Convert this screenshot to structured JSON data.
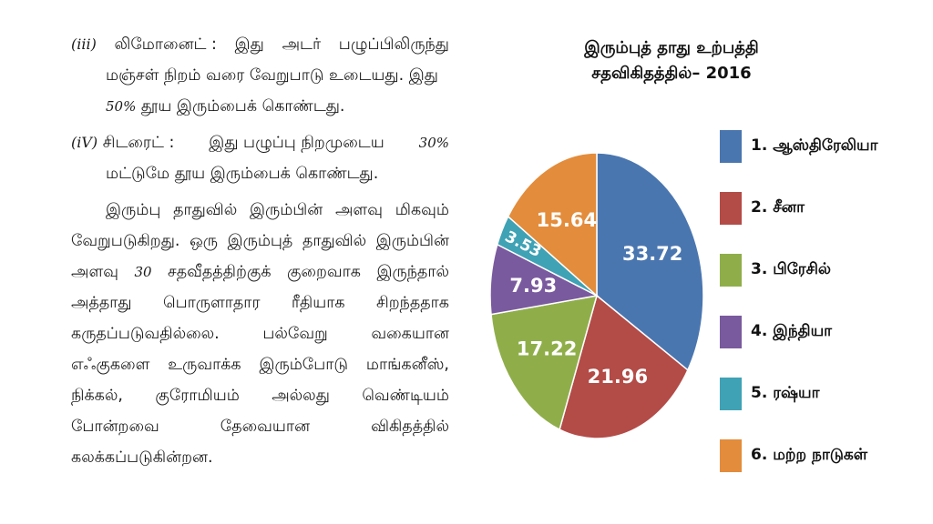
{
  "text": {
    "p1": {
      "roman": "(iii)",
      "l1": [
        "லிமோனைட் :",
        "இது",
        "அடர்",
        "பழுப்பிலிருந்து"
      ],
      "l2": "மஞ்சள் நிறம் வரை வேறுபாடு உடையது. இது",
      "l3_pct": "50%",
      "l3_rest": "தூய இரும்பைக் கொண்டது."
    },
    "p2": {
      "roman": "(iV)",
      "l1": [
        "சிடரைட் :",
        "இது பழுப்பு நிறமுடைய",
        "30%"
      ],
      "l2": "மட்டுமே தூய இரும்பைக் கொண்டது."
    },
    "p3": {
      "l1": [
        "இரும்பு",
        "தாதுவில்",
        "இரும்பின்",
        "அளவு",
        "மிகவும்"
      ],
      "l2": [
        "வேறுபடுகிறது.",
        "ஒரு",
        "இரும்புத்",
        "தாதுவில்",
        "இரும்பின்"
      ],
      "l3": [
        "அளவு",
        "30",
        "சதவீதத்திற்குக்",
        "குறைவாக",
        "இருந்தால்"
      ],
      "l4": [
        "அத்தாது",
        "பொருளாதார",
        "ரீதியாக",
        "சிறந்ததாக"
      ],
      "l5": [
        "கருதப்படுவதில்லை.",
        "பல்வேறு",
        "வகையான"
      ],
      "l6": [
        "எஃகுகளை",
        "உருவாக்க",
        "இரும்போடு",
        "மாங்கனீஸ்,"
      ],
      "l7": [
        "நிக்கல்,",
        "குரோமியம்",
        "அல்லது",
        "வெண்டியம்"
      ],
      "l8": [
        "போன்றவை",
        "தேவையான",
        "விகிதத்தில்"
      ],
      "l9": "கலக்கப்படுகின்றன."
    }
  },
  "chart_data": {
    "type": "pie",
    "title": "இரும்புத் தாது உற்பத்தி",
    "subtitle": "சதவிகிதத்தில்– 2016",
    "categories": [
      "1. ஆஸ்திரேலியா",
      "2. சீனா",
      "3. பிரேசில்",
      "4. இந்தியா",
      "5. ரஷ்யா",
      "6. மற்ற நாடுகள்"
    ],
    "values": [
      33.72,
      21.96,
      17.22,
      7.93,
      3.53,
      15.64
    ],
    "labels": [
      "33.72",
      "21.96",
      "17.22",
      "7.93",
      "3.53",
      "15.64"
    ],
    "colors": [
      "#4a76b0",
      "#b34b47",
      "#8fae4a",
      "#7a5a9e",
      "#3fa2b5",
      "#e38c3b"
    ],
    "legend_position": "right",
    "start": "top, clockwise"
  }
}
